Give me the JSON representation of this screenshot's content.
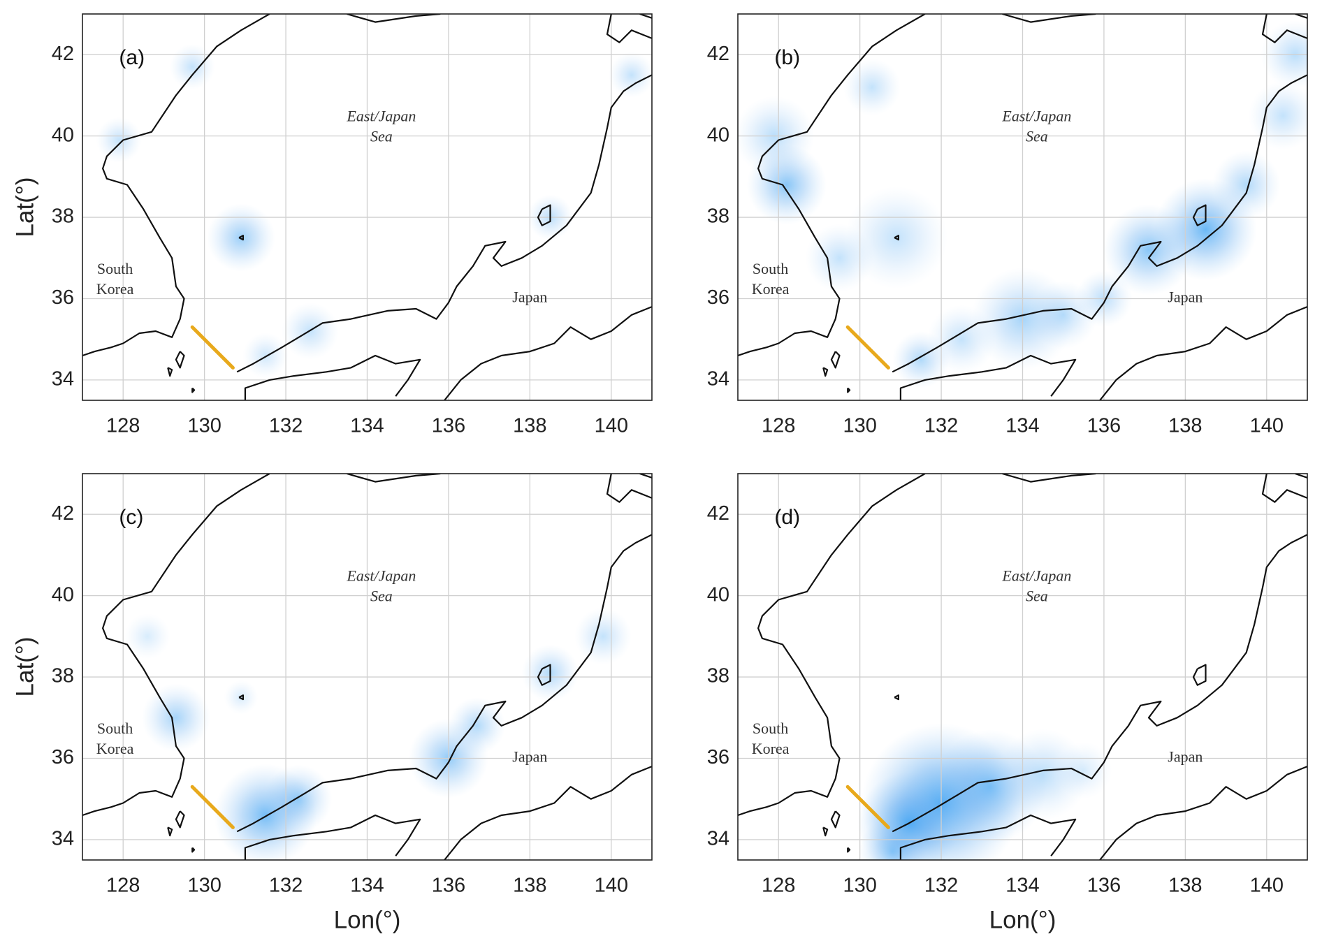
{
  "chart_data": [
    {
      "type": "map",
      "panel_label": "(a)",
      "y_label": "Lat(°)",
      "xlim": [
        127,
        141
      ],
      "ylim": [
        33.5,
        43
      ],
      "xticks": [
        128,
        130,
        132,
        134,
        136,
        138,
        140
      ],
      "yticks": [
        34,
        36,
        38,
        40,
        42
      ],
      "sea_label": [
        "East/Japan",
        "Sea"
      ],
      "korea_label": [
        "South",
        "Korea"
      ],
      "japan_label": "Japan"
    },
    {
      "type": "map",
      "panel_label": "(b)",
      "xlim": [
        127,
        141
      ],
      "ylim": [
        33.5,
        43
      ],
      "xticks": [
        128,
        130,
        132,
        134,
        136,
        138,
        140
      ],
      "yticks": [
        34,
        36,
        38,
        40,
        42
      ],
      "sea_label": [
        "East/Japan",
        "Sea"
      ],
      "korea_label": [
        "South",
        "Korea"
      ],
      "japan_label": "Japan"
    },
    {
      "type": "map",
      "panel_label": "(c)",
      "y_label": "Lat(°)",
      "x_label": "Lon(°)",
      "xlim": [
        127,
        141
      ],
      "ylim": [
        33.5,
        43
      ],
      "xticks": [
        128,
        130,
        132,
        134,
        136,
        138,
        140
      ],
      "yticks": [
        34,
        36,
        38,
        40,
        42
      ],
      "sea_label": [
        "East/Japan",
        "Sea"
      ],
      "korea_label": [
        "South",
        "Korea"
      ],
      "japan_label": "Japan"
    },
    {
      "type": "map",
      "panel_label": "(d)",
      "x_label": "Lon(°)",
      "xlim": [
        127,
        141
      ],
      "ylim": [
        33.5,
        43
      ],
      "xticks": [
        128,
        130,
        132,
        134,
        136,
        138,
        140
      ],
      "yticks": [
        34,
        36,
        38,
        40,
        42
      ],
      "sea_label": [
        "East/Japan",
        "Sea"
      ],
      "korea_label": [
        "South",
        "Korea"
      ],
      "japan_label": "Japan"
    }
  ]
}
